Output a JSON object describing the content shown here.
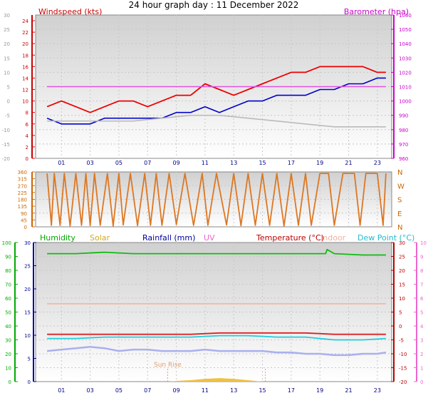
{
  "chart_data": [
    {
      "type": "line",
      "title": "24 hour graph day : 11 December 2022",
      "legend": [
        {
          "label": "Windspeed (kts)",
          "color": "#cc0000"
        },
        {
          "label": "Barometer (hpa)",
          "color": "#cc00cc"
        }
      ],
      "x_ticks": [
        "01",
        "03",
        "05",
        "07",
        "09",
        "11",
        "13",
        "15",
        "17",
        "19",
        "21",
        "23"
      ],
      "y_left": {
        "label": "Windspeed (kts)",
        "ticks": [
          0,
          2,
          4,
          6,
          8,
          10,
          12,
          14,
          16,
          18,
          20,
          22,
          24
        ],
        "range": [
          0,
          25
        ]
      },
      "y_left_outer": {
        "ticks": [
          -20,
          -15,
          -10,
          -5,
          0,
          5,
          10,
          15,
          20,
          25,
          30
        ],
        "range": [
          -20,
          30
        ]
      },
      "y_right": {
        "label": "Barometer (hpa)",
        "ticks": [
          960,
          970,
          980,
          990,
          1000,
          1010,
          1020,
          1030,
          1040,
          1050,
          1060
        ],
        "range": [
          960,
          1060
        ]
      },
      "series": [
        {
          "name": "Windspeed (kts)",
          "color": "#ee0000",
          "axis": "wind",
          "x": [
            0,
            1,
            2,
            3,
            4,
            5,
            6,
            7,
            8,
            9,
            10,
            11,
            12,
            13,
            14,
            15,
            16,
            17,
            18,
            19,
            20,
            21,
            22,
            23,
            23.6
          ],
          "values": [
            9,
            10,
            9,
            8,
            9,
            10,
            10,
            9,
            10,
            11,
            11,
            13,
            12,
            11,
            12,
            13,
            14,
            15,
            15,
            16,
            16,
            16,
            16,
            15,
            15
          ]
        },
        {
          "name": "Average wind",
          "color": "#0000cc",
          "axis": "wind",
          "x": [
            0,
            1,
            2,
            3,
            4,
            5,
            6,
            7,
            8,
            9,
            10,
            11,
            12,
            13,
            14,
            15,
            16,
            17,
            18,
            19,
            20,
            21,
            22,
            23,
            23.6
          ],
          "values": [
            7,
            6,
            6,
            6,
            7,
            7,
            7,
            7,
            7,
            8,
            8,
            9,
            8,
            9,
            10,
            10,
            11,
            11,
            11,
            12,
            12,
            13,
            13,
            14,
            14
          ]
        },
        {
          "name": "Barometer (hpa)",
          "color": "#e050e0",
          "axis": "baro",
          "x": [
            0,
            2,
            4,
            6,
            8,
            10,
            12,
            14,
            16,
            18,
            20,
            22,
            23.6
          ],
          "values": [
            1010,
            1010,
            1010,
            1010,
            1010,
            1010,
            1010,
            1010,
            1010,
            1010,
            1010,
            1010,
            1010
          ]
        },
        {
          "name": "Gray trace",
          "color": "#bbbbbb",
          "axis": "outer",
          "x": [
            0,
            2,
            4,
            6,
            8,
            10,
            12,
            14,
            16,
            18,
            20,
            22,
            23.6
          ],
          "values": [
            -7,
            -7,
            -7,
            -7,
            -6,
            -5,
            -5,
            -6,
            -7,
            -8,
            -9,
            -9,
            -9
          ]
        }
      ]
    },
    {
      "type": "line",
      "title": "",
      "y_left": {
        "ticks": [
          0,
          45,
          90,
          135,
          180,
          225,
          270,
          315,
          360
        ],
        "range": [
          0,
          360
        ]
      },
      "y_right": {
        "ticks": [
          "N",
          "W",
          "S",
          "E",
          "N"
        ]
      },
      "series": [
        {
          "name": "Wind direction",
          "color": "#dd7722",
          "x": [
            0,
            0.3,
            0.5,
            0.9,
            1.2,
            1.6,
            2.0,
            2.4,
            2.7,
            3.0,
            3.3,
            3.7,
            4.2,
            4.6,
            5.0,
            5.3,
            5.8,
            6.3,
            6.8,
            7.2,
            7.6,
            8.0,
            8.5,
            9.0,
            9.6,
            10.2,
            10.8,
            11.2,
            11.8,
            12.5,
            13.0,
            13.5,
            14.0,
            14.5,
            15.0,
            15.5,
            16.0,
            16.5,
            17.0,
            17.5,
            18.0,
            18.4,
            19.0,
            19.6,
            20.0,
            20.6,
            21.0,
            21.4,
            21.8,
            22.2,
            22.6,
            23.0,
            23.4,
            23.6
          ],
          "values": [
            350,
            10,
            350,
            10,
            350,
            5,
            350,
            10,
            350,
            8,
            350,
            10,
            350,
            5,
            350,
            12,
            350,
            8,
            350,
            10,
            350,
            10,
            350,
            15,
            350,
            10,
            350,
            10,
            350,
            12,
            350,
            8,
            350,
            10,
            350,
            10,
            350,
            5,
            350,
            10,
            350,
            10,
            350,
            350,
            10,
            350,
            350,
            350,
            10,
            350,
            350,
            350,
            10,
            350
          ]
        }
      ]
    },
    {
      "type": "line",
      "title": "",
      "legend": [
        {
          "label": "Humidity",
          "color": "#00aa00"
        },
        {
          "label": "Solar",
          "color": "#ccaa22"
        },
        {
          "label": "Rainfall (mm)",
          "color": "#000099"
        },
        {
          "label": "UV",
          "color": "#ee66cc"
        },
        {
          "label": "Temperature (°C)",
          "color": "#bb0000"
        },
        {
          "label": "Indoor",
          "color": "#f0b0a0"
        },
        {
          "label": "Dew Point (°C)",
          "color": "#22bbcc"
        }
      ],
      "annotation": "Sun Rise",
      "y_left_humidity": {
        "ticks": [
          0,
          10,
          20,
          30,
          40,
          50,
          60,
          70,
          80,
          90,
          100
        ],
        "range": [
          0,
          100
        ]
      },
      "y_left_rain": {
        "ticks": [
          0,
          5,
          10,
          15,
          20,
          25,
          30
        ],
        "range": [
          0,
          30
        ]
      },
      "y_right_temp": {
        "ticks": [
          -20,
          -15,
          -10,
          -5,
          0,
          5,
          10,
          15,
          20,
          25,
          30
        ],
        "range": [
          -20,
          30
        ]
      },
      "y_right_uv": {
        "ticks": [
          0,
          1,
          2,
          3,
          4,
          5,
          6,
          7,
          8,
          9,
          10
        ],
        "range": [
          0,
          10
        ]
      },
      "series": [
        {
          "name": "Humidity",
          "color": "#11bb11",
          "axis": "hum",
          "x": [
            0,
            2,
            4,
            6,
            8,
            10,
            12,
            14,
            16,
            18,
            19.4,
            19.5,
            20,
            22,
            23.6
          ],
          "values": [
            92,
            92,
            93,
            92,
            92,
            92,
            92,
            92,
            92,
            92,
            92,
            95,
            92,
            91,
            91
          ]
        },
        {
          "name": "Indoor",
          "color": "#f2b8a8",
          "axis": "temp",
          "x": [
            0,
            4,
            8,
            12,
            16,
            20,
            23.6
          ],
          "values": [
            8,
            8,
            8,
            8,
            8,
            8,
            8
          ]
        },
        {
          "name": "Temperature (°C)",
          "color": "#dd2222",
          "axis": "temp",
          "x": [
            0,
            2,
            4,
            6,
            8,
            10,
            12,
            14,
            16,
            18,
            20,
            22,
            23.6
          ],
          "values": [
            -3,
            -3,
            -3,
            -3,
            -3,
            -3,
            -2.5,
            -2.5,
            -2.5,
            -2.5,
            -3,
            -3,
            -3
          ]
        },
        {
          "name": "Dew Point (°C)",
          "color": "#22ccdd",
          "axis": "temp",
          "x": [
            0,
            2,
            4,
            6,
            8,
            10,
            12,
            14,
            16,
            18,
            20,
            22,
            23.6
          ],
          "values": [
            -4.5,
            -4.5,
            -4,
            -4,
            -4,
            -4,
            -3.5,
            -3.5,
            -4,
            -4,
            -5,
            -5,
            -4.5
          ]
        },
        {
          "name": "Rainfall band",
          "color": "#aab0ee",
          "axis": "temp",
          "x": [
            0,
            1,
            2,
            3,
            4,
            5,
            6,
            7,
            8,
            9,
            10,
            11,
            12,
            13,
            14,
            15,
            16,
            17,
            18,
            19,
            20,
            21,
            22,
            23,
            23.6
          ],
          "values": [
            -9,
            -8.5,
            -8,
            -7.5,
            -8,
            -9,
            -8.5,
            -8.5,
            -9,
            -9,
            -9,
            -8.5,
            -9,
            -9,
            -9,
            -9,
            -9.5,
            -9.5,
            -10,
            -10,
            -10.5,
            -10.5,
            -10,
            -10,
            -9.5
          ]
        },
        {
          "name": "Solar",
          "color": "#f0c040",
          "axis": "hum",
          "x": [
            8.5,
            9,
            10,
            11,
            12,
            13,
            14,
            15
          ],
          "values": [
            0,
            0.5,
            1,
            2,
            2.5,
            2,
            1,
            0
          ]
        }
      ]
    }
  ]
}
